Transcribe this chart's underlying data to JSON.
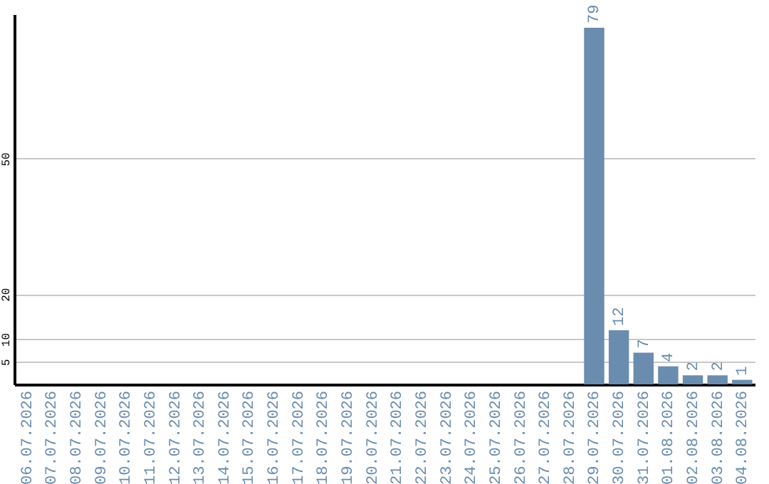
{
  "chart_data": {
    "type": "bar",
    "categories": [
      "06.07.2026",
      "07.07.2026",
      "08.07.2026",
      "09.07.2026",
      "10.07.2026",
      "11.07.2026",
      "12.07.2026",
      "13.07.2026",
      "14.07.2026",
      "15.07.2026",
      "16.07.2026",
      "17.07.2026",
      "18.07.2026",
      "19.07.2026",
      "20.07.2026",
      "21.07.2026",
      "22.07.2026",
      "23.07.2026",
      "24.07.2026",
      "25.07.2026",
      "26.07.2026",
      "27.07.2026",
      "28.07.2026",
      "29.07.2026",
      "30.07.2026",
      "31.07.2026",
      "01.08.2026",
      "02.08.2026",
      "03.08.2026",
      "04.08.2026"
    ],
    "values": [
      0,
      0,
      0,
      0,
      0,
      0,
      0,
      0,
      0,
      0,
      0,
      0,
      0,
      0,
      0,
      0,
      0,
      0,
      0,
      0,
      0,
      0,
      0,
      79,
      12,
      7,
      4,
      2,
      2,
      1
    ],
    "value_labels": [
      null,
      null,
      null,
      null,
      null,
      null,
      null,
      null,
      null,
      null,
      null,
      null,
      null,
      null,
      null,
      null,
      null,
      null,
      null,
      null,
      null,
      null,
      null,
      "79",
      "12",
      "7",
      "4",
      "2",
      "2",
      "1"
    ],
    "color": "#6a8caf",
    "ylim": [
      0,
      82
    ],
    "yticks": [
      5,
      10,
      20,
      50
    ],
    "grid": "y"
  }
}
